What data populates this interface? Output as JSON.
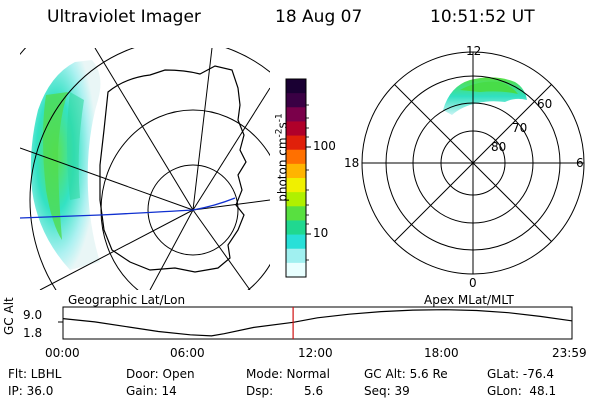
{
  "header": {
    "instrument": "Ultraviolet Imager",
    "date": "18 Aug 07",
    "time": "10:51:52 UT"
  },
  "map_labels": {
    "left": "Geographic Lat/Lon",
    "right": "Apex MLat/MLT"
  },
  "polar_plot": {
    "mlt_labels": [
      "12",
      "18",
      "6",
      "0"
    ],
    "mlat_labels": [
      "60",
      "70",
      "80"
    ]
  },
  "colorbar": {
    "label": "photon cm",
    "label_exp1": "-2",
    "label_s": "s",
    "label_exp2": "-1",
    "ticks": [
      "100",
      "10"
    ],
    "colors": [
      "#1a0033",
      "#3a0044",
      "#7a004a",
      "#b0002a",
      "#e0200a",
      "#ff7000",
      "#ffb400",
      "#f0f000",
      "#b0f000",
      "#58e040",
      "#20d890",
      "#28e0d8",
      "#a0f0f0",
      "#e8ffff"
    ]
  },
  "timeline": {
    "ylabel": "GC Alt",
    "ytick_top": "9.0",
    "ytick_bottom": "1.8",
    "xticks": [
      "00:00",
      "06:00",
      "12:00",
      "18:00",
      "23:59"
    ],
    "marker_time": "10:51",
    "altitude_curve_re": [
      {
        "t": 0.0,
        "alt": 6.6
      },
      {
        "t": 1.5,
        "alt": 5.7
      },
      {
        "t": 3.0,
        "alt": 4.4
      },
      {
        "t": 4.5,
        "alt": 3.1
      },
      {
        "t": 6.0,
        "alt": 2.2
      },
      {
        "t": 7.0,
        "alt": 1.9
      },
      {
        "t": 7.6,
        "alt": 2.5
      },
      {
        "t": 9.0,
        "alt": 4.2
      },
      {
        "t": 10.86,
        "alt": 5.6
      },
      {
        "t": 12.0,
        "alt": 6.8
      },
      {
        "t": 13.5,
        "alt": 7.8
      },
      {
        "t": 15.0,
        "alt": 8.5
      },
      {
        "t": 16.5,
        "alt": 8.9
      },
      {
        "t": 18.0,
        "alt": 9.0
      },
      {
        "t": 19.5,
        "alt": 8.8
      },
      {
        "t": 21.0,
        "alt": 8.2
      },
      {
        "t": 22.5,
        "alt": 7.2
      },
      {
        "t": 23.98,
        "alt": 6.0
      }
    ]
  },
  "footer": {
    "filter": "Flt: LBHL",
    "ip": "IP: 36.0",
    "door": "Door: Open",
    "gain": "Gain: 14",
    "mode": "Mode: Normal",
    "dsp_label": "Dsp:",
    "dsp_value": "5.6",
    "gc_alt": "GC Alt: 5.6 Re",
    "seq": "Seq: 39",
    "glat": "GLat: -76.4",
    "glon": "GLon:  48.1"
  }
}
